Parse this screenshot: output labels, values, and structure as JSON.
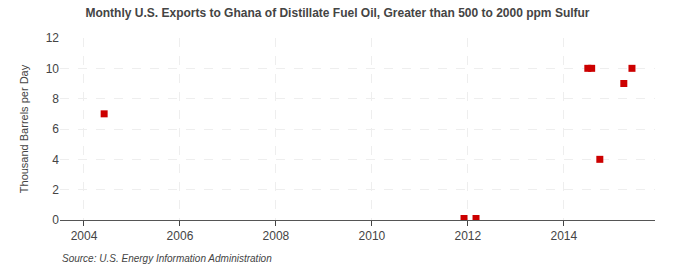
{
  "chart_data": {
    "type": "scatter",
    "title": "Monthly U.S. Exports to Ghana of Distillate Fuel Oil, Greater than 500 to 2000 ppm Sulfur",
    "ylabel": "Thousand Barrels per Day",
    "annotations": [
      "Source: U.S. Energy Information Administration"
    ],
    "x": [
      2004.42,
      2011.92,
      2012.17,
      2014.5,
      2014.58,
      2014.75,
      2015.25,
      2015.42
    ],
    "values": [
      7.0,
      0.1,
      0.1,
      10.0,
      10.0,
      4.0,
      9.0,
      10.0
    ],
    "color": "#cc0000",
    "marker": "square",
    "xlim": [
      2003.5,
      2015.9
    ],
    "ylim": [
      0,
      12
    ],
    "xticks": [
      2004,
      2006,
      2008,
      2010,
      2012,
      2014
    ],
    "yticks": [
      0,
      2,
      4,
      6,
      8,
      10,
      12
    ],
    "grid": true
  }
}
